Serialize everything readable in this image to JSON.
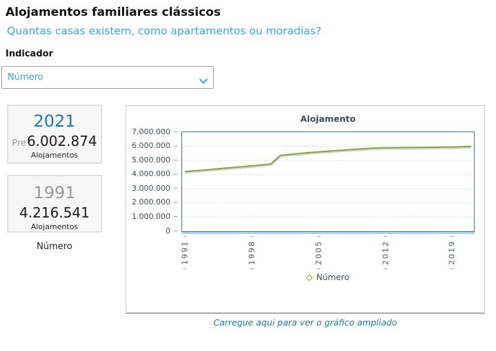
{
  "page": {
    "title": "Alojamentos familiares clássicos",
    "subtitle": "Quantas casas existem, como apartamentos ou moradias?"
  },
  "indicator": {
    "label": "Indicador",
    "selected": "Número"
  },
  "summary_cards": {
    "latest": {
      "year": "2021",
      "prefix": "Pre",
      "value": "6.002.874",
      "unit": "Alojamentos"
    },
    "first": {
      "year": "1991",
      "prefix": "",
      "value": "4.216.541",
      "unit": "Alojamentos"
    }
  },
  "cards_footer": "Número",
  "chart_link": "Carregue aqui para ver o gráfico ampliado",
  "colors": {
    "accent_blue": "#2176b5",
    "light_blue": "#3aa7dd",
    "line_olive": "#8aa43e",
    "plot_border_blue": "#46719c"
  },
  "chart_data": {
    "type": "line",
    "title": "Alojamento",
    "legend": "Número",
    "x": [
      1991,
      1992,
      1993,
      1994,
      1995,
      1996,
      1997,
      1998,
      1999,
      2000,
      2001,
      2002,
      2003,
      2004,
      2005,
      2006,
      2007,
      2008,
      2009,
      2010,
      2011,
      2012,
      2013,
      2014,
      2015,
      2016,
      2017,
      2018,
      2019,
      2020,
      2021
    ],
    "values": [
      4216541,
      4271000,
      4327000,
      4384000,
      4442000,
      4501000,
      4561000,
      4623000,
      4687000,
      4752000,
      5357000,
      5430000,
      5495000,
      5555000,
      5610000,
      5660000,
      5705000,
      5750000,
      5795000,
      5840000,
      5880000,
      5895000,
      5903000,
      5910000,
      5916000,
      5922000,
      5930000,
      5940000,
      5952000,
      5966000,
      6002874
    ],
    "ylim": [
      0,
      7000000
    ],
    "ytick_step": 1000000,
    "xticks": [
      1991,
      1998,
      2005,
      2012,
      2019
    ],
    "grid": "dotted-horizontal",
    "legend_position": "bottom",
    "xlabel": "",
    "ylabel": ""
  }
}
